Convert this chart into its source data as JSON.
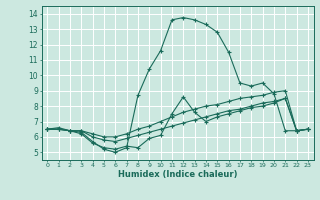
{
  "title": "",
  "xlabel": "Humidex (Indice chaleur)",
  "bg_color": "#cce8e0",
  "line_color": "#1a6b5a",
  "grid_color": "#ffffff",
  "xlim": [
    -0.5,
    23.5
  ],
  "ylim": [
    4.5,
    14.5
  ],
  "xticks": [
    0,
    1,
    2,
    3,
    4,
    5,
    6,
    7,
    8,
    9,
    10,
    11,
    12,
    13,
    14,
    15,
    16,
    17,
    18,
    19,
    20,
    21,
    22,
    23
  ],
  "yticks": [
    5,
    6,
    7,
    8,
    9,
    10,
    11,
    12,
    13,
    14
  ],
  "series": [
    {
      "x": [
        0,
        1,
        2,
        3,
        4,
        5,
        6,
        7,
        8,
        9,
        10,
        11,
        12,
        13,
        14,
        15,
        16,
        17,
        18,
        19,
        20,
        21,
        22,
        23
      ],
      "y": [
        6.5,
        6.6,
        6.4,
        6.2,
        5.6,
        5.3,
        5.2,
        5.4,
        5.3,
        5.9,
        6.1,
        7.5,
        8.6,
        7.6,
        7.0,
        7.3,
        7.5,
        7.7,
        7.9,
        8.0,
        8.2,
        8.5,
        6.4,
        6.5
      ]
    },
    {
      "x": [
        0,
        1,
        2,
        3,
        4,
        5,
        6,
        7,
        8,
        9,
        10,
        11,
        12,
        13,
        14,
        15,
        16,
        17,
        18,
        19,
        20,
        21,
        22,
        23
      ],
      "y": [
        6.5,
        6.5,
        6.4,
        6.4,
        6.0,
        5.8,
        5.7,
        5.9,
        6.1,
        6.3,
        6.5,
        6.7,
        6.9,
        7.1,
        7.3,
        7.5,
        7.7,
        7.8,
        8.0,
        8.2,
        8.3,
        8.5,
        6.4,
        6.5
      ]
    },
    {
      "x": [
        0,
        1,
        2,
        3,
        4,
        5,
        6,
        7,
        8,
        9,
        10,
        11,
        12,
        13,
        14,
        15,
        16,
        17,
        18,
        19,
        20,
        21,
        22,
        23
      ],
      "y": [
        6.5,
        6.5,
        6.4,
        6.4,
        6.2,
        6.0,
        6.0,
        6.2,
        6.5,
        6.7,
        7.0,
        7.3,
        7.6,
        7.8,
        8.0,
        8.1,
        8.3,
        8.5,
        8.6,
        8.7,
        8.9,
        9.0,
        6.4,
        6.5
      ]
    },
    {
      "x": [
        0,
        1,
        2,
        3,
        4,
        5,
        6,
        7,
        8,
        9,
        10,
        11,
        12,
        13,
        14,
        15,
        16,
        17,
        18,
        19,
        20,
        21,
        22,
        23
      ],
      "y": [
        6.5,
        6.5,
        6.4,
        6.3,
        5.7,
        5.2,
        5.0,
        5.3,
        8.7,
        10.4,
        11.6,
        13.6,
        13.75,
        13.6,
        13.3,
        12.8,
        11.5,
        9.5,
        9.3,
        9.5,
        8.8,
        6.4,
        6.4,
        6.5
      ]
    }
  ]
}
